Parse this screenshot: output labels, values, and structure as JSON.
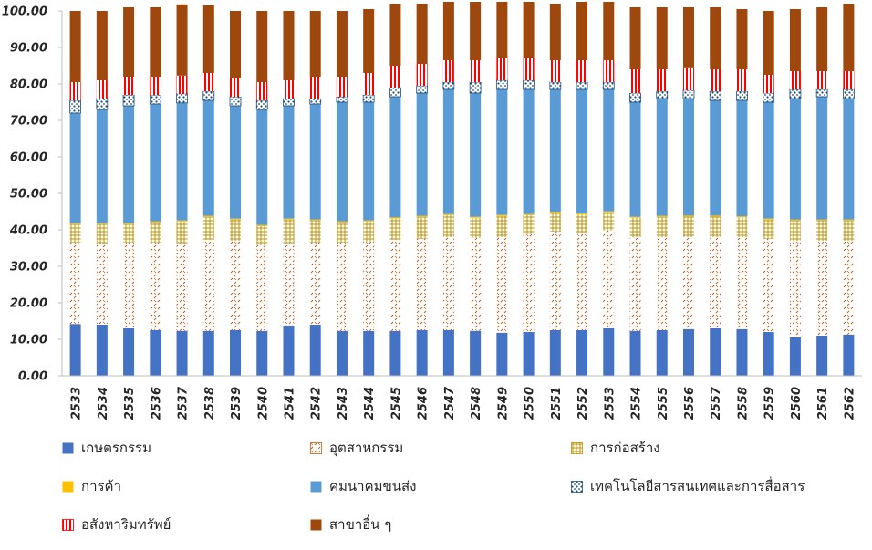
{
  "chart_data": {
    "type": "bar",
    "stacked": true,
    "categories": [
      "2533",
      "2534",
      "2535",
      "2536",
      "2537",
      "2538",
      "2539",
      "2540",
      "2541",
      "2542",
      "2543",
      "2544",
      "2545",
      "2546",
      "2547",
      "2548",
      "2549",
      "2550",
      "2551",
      "2552",
      "2553",
      "2554",
      "2555",
      "2556",
      "2557",
      "2558",
      "2559",
      "2560",
      "2561",
      "2562"
    ],
    "ylim": [
      0,
      100
    ],
    "yticks": [
      "0.00",
      "10.00",
      "20.00",
      "30.00",
      "40.00",
      "50.00",
      "60.00",
      "70.00",
      "80.00",
      "90.00",
      "100.00"
    ],
    "grid": false,
    "legend_position": "bottom",
    "series": [
      {
        "name": "เกษตรกรรม",
        "color": "#4472C4",
        "pattern": "solid",
        "values": [
          14.2,
          14.0,
          13.0,
          12.5,
          12.3,
          12.3,
          12.5,
          12.3,
          13.8,
          14.0,
          12.3,
          12.3,
          12.3,
          12.5,
          12.5,
          12.3,
          11.8,
          12.0,
          12.5,
          12.5,
          13.0,
          12.3,
          12.5,
          12.8,
          13.0,
          12.8,
          12.0,
          10.5,
          11.0,
          11.3
        ]
      },
      {
        "name": "อุตสาหกรรม",
        "color": "#C55A11",
        "pattern": "dashed-diagonal",
        "values": [
          22.3,
          22.3,
          23.5,
          24.0,
          24.0,
          25.0,
          24.5,
          23.5,
          22.5,
          22.5,
          24.2,
          24.5,
          25.0,
          25.0,
          25.5,
          25.5,
          26.2,
          26.8,
          27.0,
          26.7,
          26.8,
          25.7,
          25.5,
          25.2,
          25.0,
          25.2,
          25.5,
          26.5,
          26.0,
          25.7
        ]
      },
      {
        "name": "การก่อสร้าง",
        "color": "#BF9000",
        "pattern": "grid",
        "values": [
          5.0,
          5.2,
          5.0,
          5.5,
          6.0,
          6.2,
          5.8,
          5.2,
          6.5,
          6.0,
          5.5,
          5.5,
          5.8,
          6.0,
          6.0,
          5.5,
          5.8,
          5.2,
          5.2,
          5.0,
          5.0,
          5.3,
          5.5,
          5.6,
          5.6,
          5.4,
          5.3,
          5.5,
          5.5,
          5.5
        ]
      },
      {
        "name": "การค้า",
        "color": "#FFC000",
        "pattern": "solid",
        "values": [
          0.3,
          0.3,
          0.3,
          0.3,
          0.3,
          0.3,
          0.3,
          0.3,
          0.3,
          0.3,
          0.3,
          0.3,
          0.3,
          0.3,
          0.3,
          0.3,
          0.3,
          0.3,
          0.3,
          0.3,
          0.3,
          0.3,
          0.3,
          0.3,
          0.3,
          0.3,
          0.3,
          0.3,
          0.3,
          0.3
        ]
      },
      {
        "name": "คมนาคมขนส่ง",
        "color": "#5B9BD5",
        "pattern": "solid",
        "values": [
          30.2,
          31.2,
          32.2,
          32.2,
          32.2,
          31.7,
          30.9,
          31.7,
          30.9,
          31.7,
          32.7,
          32.4,
          33.1,
          33.7,
          34.2,
          33.9,
          34.4,
          34.2,
          33.5,
          34.0,
          33.4,
          31.4,
          32.2,
          32.1,
          31.6,
          31.8,
          31.9,
          33.2,
          33.7,
          33.2
        ]
      },
      {
        "name": "เทคโนโลยีสารสนเทศและการสื่อสาร",
        "color": "#1F4E79",
        "pattern": "dots",
        "values": [
          3.5,
          3.0,
          3.0,
          2.5,
          2.5,
          2.5,
          2.5,
          2.5,
          2.0,
          1.5,
          1.5,
          2.0,
          2.5,
          2.0,
          2.0,
          3.0,
          2.5,
          2.5,
          2.0,
          2.0,
          2.0,
          2.5,
          2.0,
          2.3,
          2.5,
          2.5,
          2.5,
          2.5,
          2.0,
          2.5
        ]
      },
      {
        "name": "อสังหาริมทรัพย์",
        "color": "#FF0000",
        "pattern": "vertical-stripes",
        "values": [
          5.0,
          5.0,
          5.0,
          5.0,
          5.0,
          5.0,
          5.0,
          5.0,
          5.0,
          6.0,
          5.5,
          6.0,
          6.0,
          6.0,
          6.0,
          6.0,
          6.0,
          6.0,
          6.0,
          6.0,
          6.0,
          6.5,
          6.0,
          6.0,
          6.0,
          6.0,
          5.0,
          5.0,
          5.0,
          5.0
        ]
      },
      {
        "name": "สาขาอื่น ๆ",
        "color": "#9E480E",
        "pattern": "solid",
        "values": [
          19.5,
          19.0,
          19.0,
          19.0,
          19.5,
          18.5,
          18.5,
          19.5,
          19.0,
          18.0,
          18.0,
          17.5,
          17.0,
          16.5,
          16.0,
          16.0,
          15.5,
          15.5,
          15.5,
          16.0,
          16.0,
          17.0,
          17.0,
          16.7,
          17.0,
          16.5,
          17.5,
          17.0,
          17.5,
          18.5
        ]
      }
    ]
  }
}
